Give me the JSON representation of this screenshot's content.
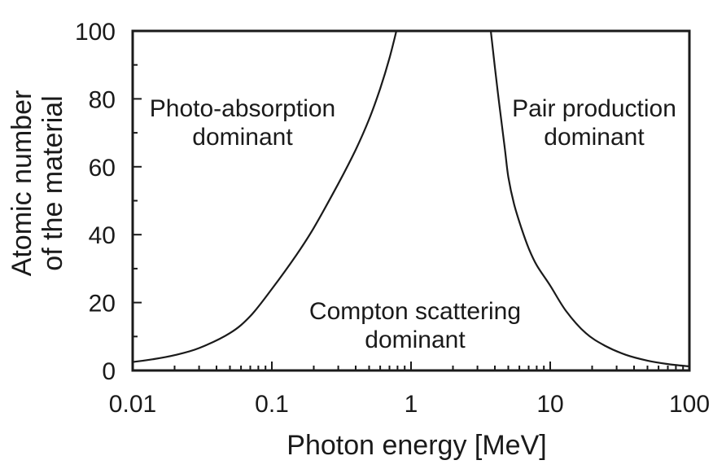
{
  "chart_data": {
    "type": "line",
    "title": "",
    "xlabel": "Photon energy [MeV]",
    "ylabel_lines": [
      "Atomic number",
      "of the material"
    ],
    "x_scale": "log",
    "y_scale": "linear",
    "xlim": [
      0.01,
      100
    ],
    "ylim": [
      0,
      100
    ],
    "grid": false,
    "legend": "none",
    "ink_color": "#1a1a1a",
    "background": "#ffffff",
    "x_ticks": [
      {
        "value": 0.01,
        "label": "0.01"
      },
      {
        "value": 0.1,
        "label": "0.1"
      },
      {
        "value": 1,
        "label": "1"
      },
      {
        "value": 10,
        "label": "10"
      },
      {
        "value": 100,
        "label": "100"
      }
    ],
    "y_ticks": [
      {
        "value": 0,
        "label": "0"
      },
      {
        "value": 20,
        "label": "20"
      },
      {
        "value": 40,
        "label": "40"
      },
      {
        "value": 60,
        "label": "60"
      },
      {
        "value": 80,
        "label": "80"
      },
      {
        "value": 100,
        "label": "100"
      }
    ],
    "series": [
      {
        "name": "photo-absorption / Compton boundary",
        "points": [
          [
            0.01,
            2.5
          ],
          [
            0.014,
            3.3
          ],
          [
            0.02,
            4.5
          ],
          [
            0.03,
            6.6
          ],
          [
            0.05,
            11
          ],
          [
            0.07,
            16
          ],
          [
            0.1,
            24
          ],
          [
            0.15,
            34
          ],
          [
            0.2,
            42
          ],
          [
            0.3,
            55
          ],
          [
            0.4,
            65
          ],
          [
            0.5,
            74
          ],
          [
            0.6,
            83
          ],
          [
            0.7,
            92
          ],
          [
            0.785,
            100
          ]
        ]
      },
      {
        "name": "Compton / pair-production boundary",
        "points": [
          [
            3.74,
            100
          ],
          [
            4.2,
            82
          ],
          [
            4.7,
            66
          ],
          [
            5.0,
            57
          ],
          [
            5.5,
            49
          ],
          [
            6.2,
            42
          ],
          [
            7,
            36
          ],
          [
            8,
            31
          ],
          [
            10,
            25
          ],
          [
            13,
            17.5
          ],
          [
            18,
            11
          ],
          [
            25,
            7.2
          ],
          [
            35,
            4.6
          ],
          [
            50,
            2.9
          ],
          [
            70,
            1.9
          ],
          [
            100,
            1.2
          ]
        ]
      }
    ],
    "regions": [
      {
        "name": "photo-absorption",
        "line1": "Photo-absorption",
        "line2": "dominant"
      },
      {
        "name": "pair-production",
        "line1": "Pair production",
        "line2": "dominant"
      },
      {
        "name": "compton-scattering",
        "line1": "Compton scattering",
        "line2": "dominant"
      }
    ]
  }
}
